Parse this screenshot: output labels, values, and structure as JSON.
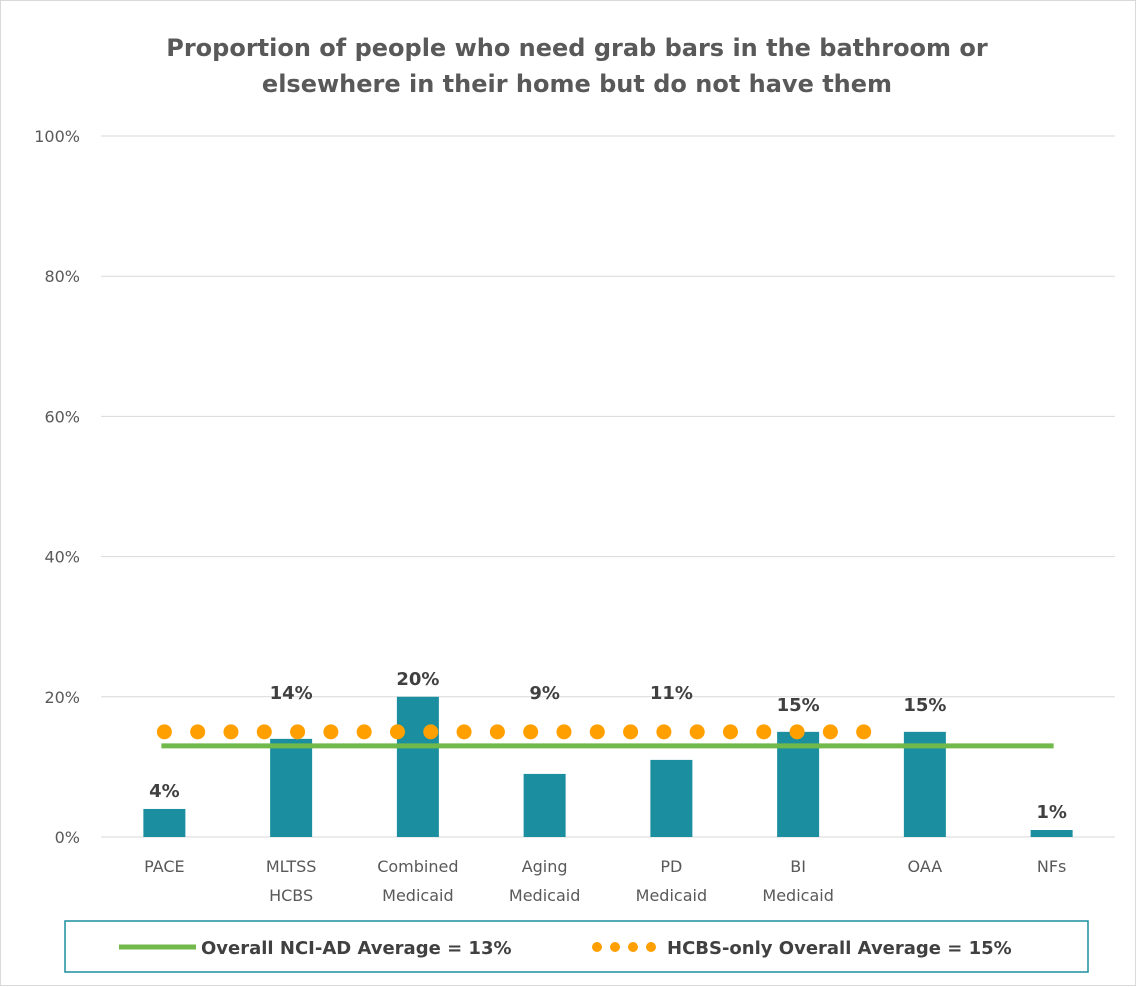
{
  "chart_data": {
    "type": "bar",
    "title_lines": [
      "Proportion of people who need grab bars in the bathroom or",
      "elsewhere in their home but do not have them"
    ],
    "categories": [
      [
        "PACE"
      ],
      [
        "MLTSS",
        "HCBS"
      ],
      [
        "Combined",
        "Medicaid"
      ],
      [
        "Aging",
        "Medicaid"
      ],
      [
        "PD",
        "Medicaid"
      ],
      [
        "BI",
        "Medicaid"
      ],
      [
        "OAA"
      ],
      [
        "NFs"
      ]
    ],
    "values": [
      4,
      14,
      20,
      9,
      11,
      15,
      15,
      1
    ],
    "data_labels": [
      "4%",
      "14%",
      "20%",
      "9%",
      "11%",
      "15%",
      "15%",
      "1%"
    ],
    "ylim": [
      0,
      100
    ],
    "yticks": [
      0,
      20,
      40,
      60,
      80,
      100
    ],
    "ytick_labels": [
      "0%",
      "20%",
      "40%",
      "60%",
      "80%",
      "100%"
    ],
    "grid": true,
    "bar_color": "#1b8fa0",
    "reference_lines": [
      {
        "name": "Overall NCI-AD Average = 13%",
        "value": 13,
        "style": "solid",
        "color": "#70b94a",
        "extent": "all"
      },
      {
        "name": "HCBS-only Overall Average = 15%",
        "value": 15,
        "style": "dotted",
        "color": "#ffa000",
        "extent": "first-6"
      }
    ],
    "legend_position": "bottom"
  }
}
